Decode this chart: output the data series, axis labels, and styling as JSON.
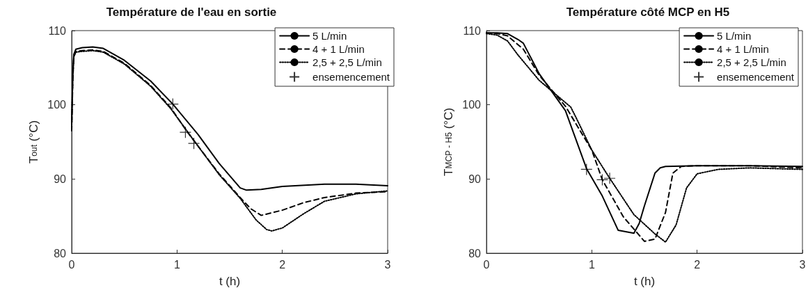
{
  "chart_data": [
    {
      "type": "line",
      "title": "Température de l'eau en sortie",
      "xlabel": "t (h)",
      "ylabel": "T$_{out}$ (°C)",
      "xlim": [
        0,
        3
      ],
      "xticks": [
        0,
        1,
        2,
        3
      ],
      "ylim": [
        80,
        110
      ],
      "yticks": [
        80,
        90,
        100,
        110
      ],
      "grid": false,
      "legend": "top right",
      "marker": "none",
      "series": [
        {
          "name": "5 L/min",
          "color": "#000000",
          "line_style": "solid",
          "x": [
            0,
            0.01,
            0.02,
            0.04,
            0.1,
            0.2,
            0.3,
            0.5,
            0.75,
            0.96,
            1.2,
            1.4,
            1.6,
            1.66,
            1.8,
            2.0,
            2.4,
            2.7,
            3.0
          ],
          "values": [
            97.5,
            104,
            106.8,
            107.5,
            107.7,
            107.8,
            107.6,
            106,
            103.2,
            100.1,
            96,
            92.1,
            88.8,
            88.5,
            88.6,
            89,
            89.3,
            89.3,
            89.1
          ]
        },
        {
          "name": "4 + 1 L/min",
          "color": "#000000",
          "line_style": "dashed",
          "x": [
            0,
            0.01,
            0.02,
            0.04,
            0.1,
            0.2,
            0.3,
            0.5,
            0.75,
            0.94,
            1.1,
            1.4,
            1.6,
            1.7,
            1.8,
            2.0,
            2.2,
            2.4,
            2.7,
            3.0
          ],
          "values": [
            96.5,
            103,
            106.5,
            107.2,
            107.3,
            107.4,
            107.2,
            105.6,
            102.6,
            99.6,
            96.3,
            90.7,
            87.5,
            86,
            85.1,
            85.8,
            86.8,
            87.5,
            88.1,
            88.3
          ]
        },
        {
          "name": "2,5 + 2,5 L/min",
          "color": "#000000",
          "line_style": "dotted",
          "x": [
            0,
            0.01,
            0.02,
            0.04,
            0.1,
            0.2,
            0.3,
            0.5,
            0.75,
            0.94,
            1.17,
            1.4,
            1.6,
            1.75,
            1.85,
            1.9,
            2.0,
            2.2,
            2.4,
            2.7,
            3.0
          ],
          "values": [
            97,
            103.5,
            106.5,
            107.1,
            107.2,
            107.3,
            107.1,
            105.5,
            102.5,
            99.5,
            95,
            90.6,
            87.4,
            84.5,
            83.2,
            83,
            83.4,
            85.3,
            87,
            88,
            88.4
          ]
        },
        {
          "name": "ensemencement",
          "type": "scatter",
          "marker": "cross",
          "color": "#000000",
          "x": [
            0.96,
            1.08,
            1.16
          ],
          "values": [
            100.1,
            96.3,
            94.8
          ]
        }
      ]
    },
    {
      "type": "line",
      "title": "Température côté MCP en H5",
      "xlabel": "t (h)",
      "ylabel": "T$_{MCP - H5}$ (°C)",
      "xlim": [
        0,
        3
      ],
      "xticks": [
        0,
        1,
        2,
        3
      ],
      "ylim": [
        80,
        110
      ],
      "yticks": [
        80,
        90,
        100,
        110
      ],
      "grid": false,
      "legend": "top right",
      "marker": "none",
      "series": [
        {
          "name": "5 L/min",
          "color": "#000000",
          "line_style": "solid",
          "x": [
            0,
            0.1,
            0.2,
            0.3,
            0.35,
            0.5,
            0.75,
            0.95,
            1.1,
            1.25,
            1.4,
            1.45,
            1.5,
            1.6,
            1.65,
            1.7,
            2.0,
            2.5,
            3.0
          ],
          "values": [
            109.7,
            109.7,
            109.6,
            108.8,
            108.3,
            104.2,
            99.2,
            91.4,
            87.7,
            83.1,
            82.7,
            84,
            86.4,
            90.8,
            91.5,
            91.7,
            91.8,
            91.8,
            91.7
          ]
        },
        {
          "name": "4 + 1 L/min",
          "color": "#000000",
          "line_style": "dashed",
          "x": [
            0,
            0.1,
            0.2,
            0.35,
            0.5,
            0.75,
            1.0,
            1.1,
            1.3,
            1.5,
            1.6,
            1.7,
            1.77,
            1.85,
            2.0,
            2.5,
            3.0
          ],
          "values": [
            109.7,
            109.6,
            109.3,
            107.5,
            104,
            99.8,
            93.9,
            89.9,
            84.9,
            81.6,
            81.9,
            85.5,
            90.8,
            91.7,
            91.8,
            91.8,
            91.5
          ]
        },
        {
          "name": "2,5 + 2,5 L/min",
          "color": "#000000",
          "line_style": "dotted",
          "x": [
            0,
            0.1,
            0.2,
            0.3,
            0.5,
            0.8,
            0.85,
            1.0,
            1.17,
            1.4,
            1.6,
            1.7,
            1.8,
            1.9,
            2.0,
            2.2,
            2.5,
            3.0
          ],
          "values": [
            109.6,
            109.4,
            108.6,
            106.7,
            103.3,
            99.7,
            98.3,
            93.9,
            90.1,
            85.2,
            82.6,
            81.5,
            83.8,
            88.8,
            90.7,
            91.3,
            91.5,
            91.3
          ]
        },
        {
          "name": "ensemencement",
          "type": "scatter",
          "marker": "cross",
          "color": "#000000",
          "x": [
            0.95,
            1.1,
            1.17
          ],
          "values": [
            91.3,
            89.9,
            90.1
          ]
        }
      ]
    }
  ]
}
